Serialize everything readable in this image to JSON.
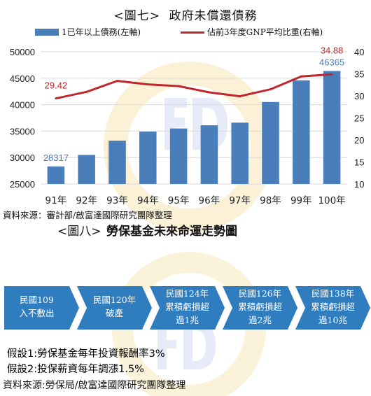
{
  "figure7": {
    "caption": "<圖七>",
    "title": "政府未償還債務",
    "legend_bar": "1已年以上債務(左軸)",
    "legend_line": "佔前3年度GNP平均比重(右軸)",
    "source": "資料來源：審計部/啟富達國際研究團隊整理"
  },
  "chart_data": {
    "type": "bar",
    "categories": [
      "91年",
      "92年",
      "93年",
      "94年",
      "95年",
      "96年",
      "97年",
      "98年",
      "99年",
      "100年"
    ],
    "series": [
      {
        "name": "1已年以上債務(左軸)",
        "type": "bar",
        "axis": "left",
        "color": "#4a7ebb",
        "values": [
          28317,
          30500,
          33200,
          34900,
          35500,
          36100,
          36600,
          40500,
          44600,
          46365
        ]
      },
      {
        "name": "佔前3年度GNP平均比重(右軸)",
        "type": "line",
        "axis": "right",
        "color": "#c0262d",
        "values": [
          29.42,
          30.9,
          33.4,
          32.6,
          32.2,
          30.8,
          29.9,
          31.5,
          34.4,
          34.88
        ]
      }
    ],
    "data_labels": [
      {
        "series": 0,
        "index": 0,
        "text": "28317",
        "color": "#4a7ebb"
      },
      {
        "series": 0,
        "index": 9,
        "text": "46365",
        "color": "#4a7ebb"
      },
      {
        "series": 1,
        "index": 0,
        "text": "29.42",
        "color": "#c0262d"
      },
      {
        "series": 1,
        "index": 9,
        "text": "34.88",
        "color": "#c0262d"
      }
    ],
    "y_left": {
      "min": 25000,
      "max": 50000,
      "ticks": [
        25000,
        30000,
        35000,
        40000,
        45000,
        50000
      ]
    },
    "y_right": {
      "min": 10,
      "max": 40,
      "ticks": [
        10,
        15,
        20,
        25,
        30,
        35,
        40
      ]
    },
    "grid": true
  },
  "figure8": {
    "caption": "<圖八>",
    "title": "勞保基金未來命運走勢圖",
    "steps": [
      {
        "line1": "民國109",
        "line2": "入不敷出"
      },
      {
        "line1": "民國120年",
        "line2": "破產"
      },
      {
        "line1": "民國124年",
        "line2": "累積虧損超",
        "line3": "過1兆"
      },
      {
        "line1": "民國126年",
        "line2": "累積虧損超",
        "line3": "過2兆"
      },
      {
        "line1": "民國138年",
        "line2": "累積虧損超",
        "line3": "過10兆"
      }
    ],
    "assumption1": "假設1:勞保基金每年投資報酬率3%",
    "assumption2": "假設2:投保薪資每年調漲1.5%",
    "source": "資料來源:勞保局/啟富達國際研究團隊整理"
  },
  "colors": {
    "bar": "#4a7ebb",
    "line": "#c0262d",
    "arrow": "#2f7cbf",
    "grid": "#d9d9d9"
  }
}
